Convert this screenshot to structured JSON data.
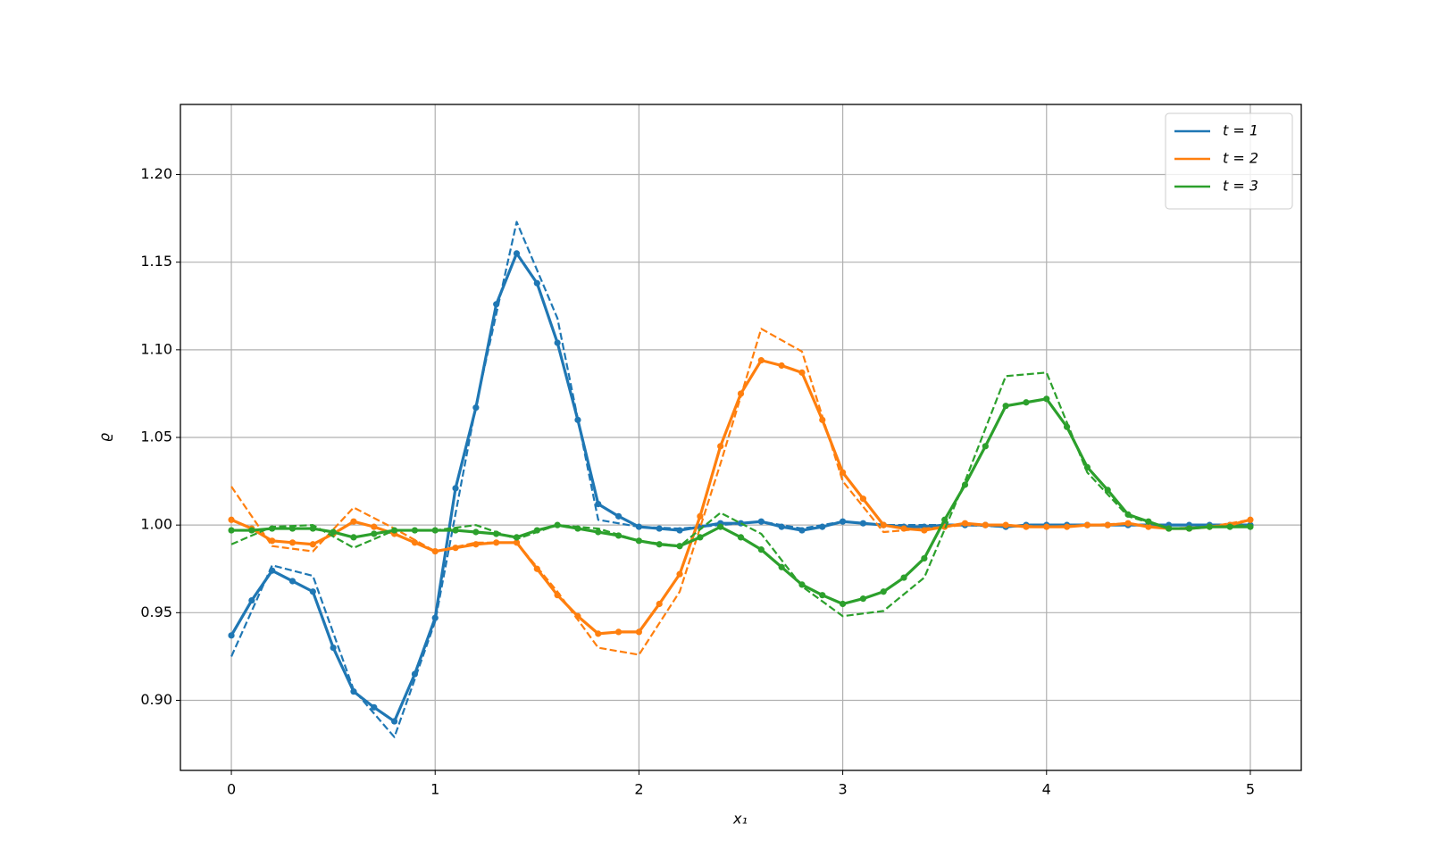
{
  "chart_data": {
    "type": "line",
    "xlabel": "x₁",
    "ylabel": "ϱ",
    "xlim": [
      -0.25,
      5.25
    ],
    "ylim": [
      0.86,
      1.24
    ],
    "xticks": [
      0,
      1,
      2,
      3,
      4,
      5
    ],
    "yticks": [
      {
        "value": 0.9,
        "label": "0.90"
      },
      0.95,
      {
        "value": 1.0,
        "label": "1.00"
      },
      1.05,
      {
        "value": 1.1,
        "label": "1.10"
      },
      1.15,
      {
        "value": 1.2,
        "label": "1.20"
      }
    ],
    "grid": true,
    "legend": "upper right",
    "series": [
      {
        "name": "t = 1",
        "color": "#1f77b4",
        "linestyle": "solid",
        "marker": true,
        "x": [
          0,
          0.1,
          0.2,
          0.3,
          0.4,
          0.5,
          0.6,
          0.7,
          0.8,
          0.9,
          1,
          1.1,
          1.2,
          1.3,
          1.4,
          1.5,
          1.6,
          1.7,
          1.8,
          1.9,
          2,
          2.1,
          2.2,
          2.3,
          2.4,
          2.5,
          2.6,
          2.7,
          2.8,
          2.9,
          3,
          3.1,
          3.2,
          3.3,
          3.4,
          3.5,
          3.6,
          3.7,
          3.8,
          3.9,
          4,
          4.1,
          4.2,
          4.3,
          4.4,
          4.5,
          4.6,
          4.7,
          4.8,
          4.9,
          5
        ],
        "values": [
          0.937,
          0.957,
          0.974,
          0.968,
          0.962,
          0.93,
          0.905,
          0.896,
          0.888,
          0.915,
          0.947,
          1.021,
          1.067,
          1.126,
          1.155,
          1.138,
          1.104,
          1.06,
          1.012,
          1.005,
          0.999,
          0.998,
          0.997,
          0.999,
          1.001,
          1.001,
          1.002,
          0.999,
          0.997,
          0.999,
          1.002,
          1.001,
          1.0,
          0.999,
          0.999,
          1.0,
          1.0,
          1.0,
          0.999,
          1.0,
          1.0,
          1.0,
          1.0,
          1.0,
          1.0,
          1.0,
          1.0,
          1.0,
          1.0,
          1.0,
          1.0
        ]
      },
      {
        "color": "#1f77b4",
        "linestyle": "dashed",
        "marker": false,
        "x": [
          0,
          0.2,
          0.4,
          0.6,
          0.8,
          1,
          1.2,
          1.4,
          1.6,
          1.8,
          2,
          2.2,
          2.4,
          2.6,
          2.8,
          3,
          3.2,
          3.4,
          3.6,
          3.8,
          4,
          4.2,
          4.4,
          4.6,
          4.8,
          5
        ],
        "values": [
          0.925,
          0.977,
          0.971,
          0.906,
          0.879,
          0.945,
          1.068,
          1.173,
          1.118,
          1.003,
          0.999,
          0.998,
          1.0,
          1.002,
          0.998,
          1.002,
          1.0,
          1.0,
          1.0,
          0.999,
          1.0,
          1.0,
          1.0,
          1.0,
          1.0,
          1.0
        ]
      },
      {
        "name": "t = 2",
        "color": "#ff7f0e",
        "linestyle": "solid",
        "marker": true,
        "x": [
          0,
          0.1,
          0.2,
          0.3,
          0.4,
          0.5,
          0.6,
          0.7,
          0.8,
          0.9,
          1,
          1.1,
          1.2,
          1.3,
          1.4,
          1.5,
          1.6,
          1.7,
          1.8,
          1.9,
          2,
          2.1,
          2.2,
          2.3,
          2.4,
          2.5,
          2.6,
          2.7,
          2.8,
          2.9,
          3,
          3.1,
          3.2,
          3.3,
          3.4,
          3.5,
          3.6,
          3.7,
          3.8,
          3.9,
          4,
          4.1,
          4.2,
          4.3,
          4.4,
          4.5,
          4.6,
          4.7,
          4.8,
          4.9,
          5
        ],
        "values": [
          1.003,
          0.998,
          0.991,
          0.99,
          0.989,
          0.995,
          1.002,
          0.999,
          0.995,
          0.99,
          0.985,
          0.987,
          0.989,
          0.99,
          0.99,
          0.975,
          0.96,
          0.948,
          0.938,
          0.939,
          0.939,
          0.955,
          0.972,
          1.005,
          1.045,
          1.075,
          1.094,
          1.091,
          1.087,
          1.06,
          1.03,
          1.015,
          1.0,
          0.998,
          0.997,
          0.999,
          1.001,
          1.0,
          1.0,
          0.999,
          0.999,
          0.999,
          1.0,
          1.0,
          1.001,
          0.999,
          0.998,
          0.998,
          0.999,
          1.0,
          1.003
        ]
      },
      {
        "color": "#ff7f0e",
        "linestyle": "dashed",
        "marker": false,
        "x": [
          0,
          0.2,
          0.4,
          0.6,
          0.8,
          1,
          1.2,
          1.4,
          1.6,
          1.8,
          2,
          2.2,
          2.4,
          2.6,
          2.8,
          3,
          3.2,
          3.4,
          3.6,
          3.8,
          4,
          4.2,
          4.4,
          4.6,
          4.8,
          5
        ],
        "values": [
          1.022,
          0.988,
          0.985,
          1.01,
          0.998,
          0.985,
          0.99,
          0.99,
          0.962,
          0.93,
          0.926,
          0.962,
          1.035,
          1.112,
          1.099,
          1.025,
          0.996,
          0.998,
          1.0,
          1.0,
          0.999,
          1.0,
          1.001,
          0.998,
          0.999,
          1.003
        ]
      },
      {
        "name": "t = 3",
        "color": "#2ca02c",
        "linestyle": "solid",
        "marker": true,
        "x": [
          0,
          0.1,
          0.2,
          0.3,
          0.4,
          0.5,
          0.6,
          0.7,
          0.8,
          0.9,
          1,
          1.1,
          1.2,
          1.3,
          1.4,
          1.5,
          1.6,
          1.7,
          1.8,
          1.9,
          2,
          2.1,
          2.2,
          2.3,
          2.4,
          2.5,
          2.6,
          2.7,
          2.8,
          2.9,
          3,
          3.1,
          3.2,
          3.3,
          3.4,
          3.5,
          3.6,
          3.7,
          3.8,
          3.9,
          4,
          4.1,
          4.2,
          4.3,
          4.4,
          4.5,
          4.6,
          4.7,
          4.8,
          4.9,
          5
        ],
        "values": [
          0.997,
          0.997,
          0.998,
          0.998,
          0.998,
          0.996,
          0.993,
          0.995,
          0.997,
          0.997,
          0.997,
          0.997,
          0.996,
          0.995,
          0.993,
          0.997,
          1.0,
          0.998,
          0.996,
          0.994,
          0.991,
          0.989,
          0.988,
          0.993,
          0.999,
          0.993,
          0.986,
          0.976,
          0.966,
          0.96,
          0.955,
          0.958,
          0.962,
          0.97,
          0.981,
          1.003,
          1.023,
          1.045,
          1.068,
          1.07,
          1.072,
          1.056,
          1.033,
          1.02,
          1.006,
          1.002,
          0.998,
          0.998,
          0.999,
          0.999,
          0.999
        ]
      },
      {
        "color": "#2ca02c",
        "linestyle": "dashed",
        "marker": false,
        "x": [
          0,
          0.2,
          0.4,
          0.6,
          0.8,
          1,
          1.2,
          1.4,
          1.6,
          1.8,
          2,
          2.2,
          2.4,
          2.6,
          2.8,
          3,
          3.2,
          3.4,
          3.6,
          3.8,
          4,
          4.2,
          4.4,
          4.6,
          4.8,
          5
        ],
        "values": [
          0.989,
          0.999,
          1.0,
          0.987,
          0.997,
          0.997,
          1.0,
          0.992,
          1.0,
          0.998,
          0.991,
          0.988,
          1.007,
          0.995,
          0.965,
          0.948,
          0.951,
          0.97,
          1.025,
          1.085,
          1.087,
          1.03,
          1.005,
          0.998,
          0.999,
          1.0
        ]
      }
    ]
  }
}
